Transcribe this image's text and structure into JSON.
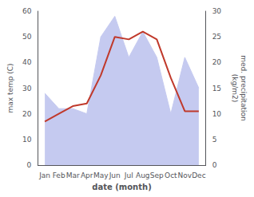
{
  "chart_data": {
    "type": "line",
    "categories": [
      "Jan",
      "Feb",
      "Mar",
      "Apr",
      "May",
      "Jun",
      "Jul",
      "Aug",
      "Sep",
      "Oct",
      "Nov",
      "Dec"
    ],
    "series": [
      {
        "type": "line",
        "color": "#c0392b",
        "values": [
          17,
          20,
          23,
          24,
          35,
          50,
          49,
          52,
          49,
          34,
          21,
          21
        ]
      },
      {
        "type": "area",
        "color": "#c5caf0",
        "axis": "y2",
        "values": [
          14,
          11,
          11,
          10,
          25,
          29,
          21,
          26,
          21,
          10,
          21,
          15
        ]
      }
    ],
    "xlabel": "date (month)",
    "ylabel": "max temp (C)",
    "y2label": "med. precipitation\n(kg/m2)",
    "ylim": [
      0,
      60
    ],
    "yticks": [
      0,
      10,
      20,
      30,
      40,
      50,
      60
    ],
    "y2lim": [
      0,
      30
    ],
    "y2ticks": [
      0,
      5,
      10,
      15,
      20,
      25,
      30
    ],
    "grid": false
  }
}
